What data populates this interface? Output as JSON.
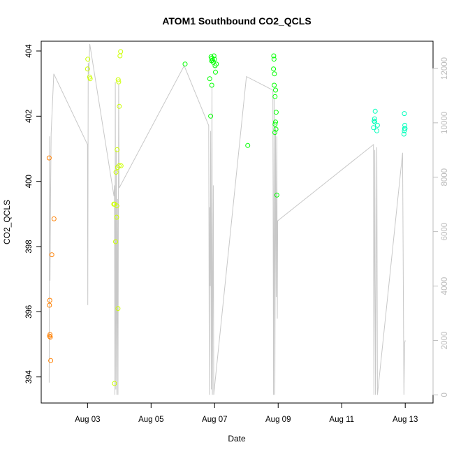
{
  "chart_data": {
    "type": "scatter",
    "title": "ATOM1 Southbound CO2_QCLS",
    "xlabel": "Date",
    "ylabel": "CO2_QCLS",
    "x_axis": {
      "type": "date",
      "range": [
        "2016-08-01T13:00",
        "2016-08-13T21:00"
      ],
      "ticks": [
        {
          "value": "2016-08-03",
          "label": "Aug 03"
        },
        {
          "value": "2016-08-05",
          "label": "Aug 05"
        },
        {
          "value": "2016-08-07",
          "label": "Aug 07"
        },
        {
          "value": "2016-08-09",
          "label": "Aug 09"
        },
        {
          "value": "2016-08-11",
          "label": "Aug 11"
        },
        {
          "value": "2016-08-13",
          "label": "Aug 13"
        }
      ]
    },
    "y_axis_left": {
      "range": [
        393.2,
        404.3
      ],
      "ticks": [
        394,
        396,
        398,
        400,
        402,
        404
      ]
    },
    "y_axis_right": {
      "range": [
        -300,
        13000
      ],
      "ticks": [
        0,
        2000,
        4000,
        6000,
        8000,
        10000,
        12000
      ],
      "color": "#bdbdbd"
    },
    "grid": false,
    "legend": "none",
    "series": [
      {
        "color": "#ff7f00",
        "points": [
          [
            "2016-08-01T19:00",
            400.72
          ],
          [
            "2016-08-01T19:30",
            396.35
          ],
          [
            "2016-08-01T19:15",
            396.2
          ],
          [
            "2016-08-01T19:40",
            395.3
          ],
          [
            "2016-08-01T19:50",
            395.22
          ],
          [
            "2016-08-01T19:20",
            395.25
          ],
          [
            "2016-08-01T20:10",
            394.5
          ],
          [
            "2016-08-01T21:00",
            397.75
          ],
          [
            "2016-08-01T22:40",
            398.85
          ]
        ]
      },
      {
        "color": "#ccff00",
        "points": [
          [
            "2016-08-03T00:10",
            403.75
          ],
          [
            "2016-08-03T00:00",
            403.45
          ],
          [
            "2016-08-03T01:30",
            403.2
          ],
          [
            "2016-08-03T02:00",
            403.15
          ],
          [
            "2016-08-03T20:30",
            399.3
          ],
          [
            "2016-08-03T21:10",
            398.15
          ],
          [
            "2016-08-03T21:30",
            400.28
          ],
          [
            "2016-08-03T22:00",
            398.9
          ],
          [
            "2016-08-03T22:20",
            400.97
          ],
          [
            "2016-08-03T22:40",
            400.43
          ],
          [
            "2016-08-03T23:00",
            396.1
          ],
          [
            "2016-08-03T23:10",
            403.12
          ],
          [
            "2016-08-03T23:30",
            403.05
          ],
          [
            "2016-08-04T00:00",
            402.3
          ],
          [
            "2016-08-04T00:30",
            403.85
          ],
          [
            "2016-08-04T01:00",
            403.98
          ],
          [
            "2016-08-03T23:50",
            400.48
          ],
          [
            "2016-08-04T01:20",
            400.48
          ],
          [
            "2016-08-03T19:50",
            399.3
          ],
          [
            "2016-08-03T22:10",
            399.25
          ],
          [
            "2016-08-03T20:20",
            393.8
          ]
        ]
      },
      {
        "color": "#00ff00",
        "points": [
          [
            "2016-08-06T01:40",
            403.6
          ],
          [
            "2016-08-06T20:20",
            403.15
          ],
          [
            "2016-08-06T21:20",
            403.82
          ],
          [
            "2016-08-06T21:40",
            403.7
          ],
          [
            "2016-08-06T22:00",
            403.78
          ],
          [
            "2016-08-06T22:30",
            403.72
          ],
          [
            "2016-08-06T23:00",
            403.65
          ],
          [
            "2016-08-06T23:30",
            403.85
          ],
          [
            "2016-08-06T23:50",
            403.75
          ],
          [
            "2016-08-07T00:20",
            403.55
          ],
          [
            "2016-08-07T00:40",
            403.35
          ],
          [
            "2016-08-07T01:20",
            403.6
          ],
          [
            "2016-08-06T21:00",
            402.0
          ],
          [
            "2016-08-06T21:50",
            402.95
          ],
          [
            "2016-08-08T01:00",
            401.1
          ],
          [
            "2016-08-08T20:40",
            403.85
          ],
          [
            "2016-08-08T20:50",
            403.75
          ],
          [
            "2016-08-08T20:30",
            403.45
          ],
          [
            "2016-08-08T21:10",
            403.3
          ],
          [
            "2016-08-08T21:00",
            402.95
          ],
          [
            "2016-08-08T21:40",
            402.6
          ],
          [
            "2016-08-08T22:00",
            402.8
          ],
          [
            "2016-08-08T22:30",
            402.12
          ],
          [
            "2016-08-08T22:00",
            401.82
          ],
          [
            "2016-08-08T22:20",
            401.6
          ],
          [
            "2016-08-08T21:40",
            401.75
          ],
          [
            "2016-08-08T21:30",
            401.5
          ],
          [
            "2016-08-08T23:00",
            399.58
          ]
        ]
      },
      {
        "color": "#00ffbb",
        "points": [
          [
            "2016-08-12T00:30",
            401.85
          ],
          [
            "2016-08-12T00:50",
            401.92
          ],
          [
            "2016-08-12T01:00",
            401.82
          ],
          [
            "2016-08-12T01:20",
            402.15
          ],
          [
            "2016-08-12T00:00",
            401.65
          ],
          [
            "2016-08-12T03:00",
            401.72
          ],
          [
            "2016-08-12T02:30",
            401.55
          ],
          [
            "2016-08-12T23:20",
            402.08
          ],
          [
            "2016-08-12T23:40",
            401.72
          ],
          [
            "2016-08-12T23:30",
            401.62
          ],
          [
            "2016-08-12T23:20",
            401.55
          ],
          [
            "2016-08-12T23:50",
            401.62
          ],
          [
            "2016-08-12T23:00",
            401.45
          ]
        ]
      }
    ],
    "line_series": {
      "axis": "right",
      "color": "#c8c8c8",
      "points": [
        [
          "2016-08-01T19:00",
          450
        ],
        [
          "2016-08-01T19:20",
          9500
        ],
        [
          "2016-08-01T19:40",
          4200
        ],
        [
          "2016-08-01T20:00",
          7000
        ],
        [
          "2016-08-01T20:30",
          9600
        ],
        [
          "2016-08-01T22:30",
          11800
        ],
        [
          "2016-08-03T00:00",
          9200
        ],
        [
          "2016-08-03T00:10",
          3300
        ],
        [
          "2016-08-03T00:30",
          12200
        ],
        [
          "2016-08-03T01:00",
          11800
        ],
        [
          "2016-08-03T01:40",
          12900
        ],
        [
          "2016-08-03T20:00",
          7300
        ],
        [
          "2016-08-03T20:20",
          7700
        ],
        [
          "2016-08-03T20:40",
          0
        ],
        [
          "2016-08-03T21:00",
          11500
        ],
        [
          "2016-08-03T21:20",
          200
        ],
        [
          "2016-08-03T21:50",
          9000
        ],
        [
          "2016-08-03T22:10",
          0
        ],
        [
          "2016-08-03T22:40",
          7200
        ],
        [
          "2016-08-03T23:00",
          0
        ],
        [
          "2016-08-03T23:30",
          11400
        ],
        [
          "2016-08-03T23:50",
          7600
        ],
        [
          "2016-08-06T01:00",
          12100
        ],
        [
          "2016-08-06T19:30",
          9900
        ],
        [
          "2016-08-06T20:00",
          0
        ],
        [
          "2016-08-06T20:20",
          6900
        ],
        [
          "2016-08-06T20:40",
          4000
        ],
        [
          "2016-08-06T21:00",
          9700
        ],
        [
          "2016-08-06T21:30",
          200
        ],
        [
          "2016-08-06T22:00",
          11300
        ],
        [
          "2016-08-06T22:20",
          0
        ],
        [
          "2016-08-06T23:00",
          7700
        ],
        [
          "2016-08-06T23:20",
          0
        ],
        [
          "2016-08-08T00:00",
          11700
        ],
        [
          "2016-08-08T20:00",
          11200
        ],
        [
          "2016-08-08T20:30",
          0
        ],
        [
          "2016-08-08T21:00",
          10900
        ],
        [
          "2016-08-08T21:30",
          0
        ],
        [
          "2016-08-08T22:00",
          9800
        ],
        [
          "2016-08-08T22:30",
          3600
        ],
        [
          "2016-08-08T23:00",
          9500
        ],
        [
          "2016-08-08T23:20",
          2800
        ],
        [
          "2016-08-08T23:40",
          6400
        ],
        [
          "2016-08-12T00:00",
          9200
        ],
        [
          "2016-08-12T00:20",
          0
        ],
        [
          "2016-08-12T01:00",
          9000
        ],
        [
          "2016-08-12T01:30",
          0
        ],
        [
          "2016-08-12T02:30",
          9100
        ],
        [
          "2016-08-12T03:00",
          0
        ],
        [
          "2016-08-12T22:00",
          8900
        ],
        [
          "2016-08-12T23:00",
          0
        ],
        [
          "2016-08-12T23:30",
          1900
        ],
        [
          "2016-08-13T00:00",
          2000
        ]
      ]
    }
  }
}
